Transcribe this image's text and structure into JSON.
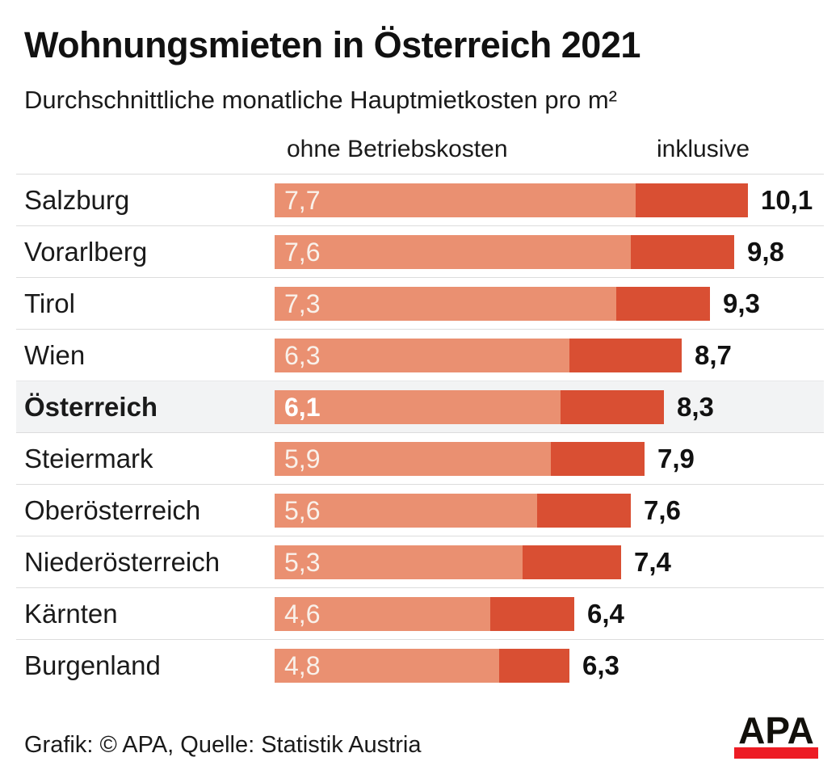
{
  "title": "Wohnungsmieten in Österreich 2021",
  "subtitle": "Durchschnittliche monatliche Hauptmietkosten pro m²",
  "column_headers": {
    "ohne": "ohne Betriebskosten",
    "inklusive": "inklusive"
  },
  "chart_data": {
    "type": "bar",
    "orientation": "horizontal",
    "stacked_overlay": true,
    "categories": [
      "Salzburg",
      "Vorarlberg",
      "Tirol",
      "Wien",
      "Österreich",
      "Steiermark",
      "Oberösterreich",
      "Niederösterreich",
      "Kärnten",
      "Burgenland"
    ],
    "series": [
      {
        "name": "ohne Betriebskosten",
        "values": [
          7.7,
          7.6,
          7.3,
          6.3,
          6.1,
          5.9,
          5.6,
          5.3,
          4.6,
          4.8
        ]
      },
      {
        "name": "inklusive",
        "values": [
          10.1,
          9.8,
          9.3,
          8.7,
          8.3,
          7.9,
          7.6,
          7.4,
          6.4,
          6.3
        ]
      }
    ],
    "value_labels": {
      "ohne": [
        "7,7",
        "7,6",
        "7,3",
        "6,3",
        "6,1",
        "5,9",
        "5,6",
        "5,3",
        "4,6",
        "4,8"
      ],
      "inklusive": [
        "10,1",
        "9,8",
        "9,3",
        "8,7",
        "8,3",
        "7,9",
        "7,6",
        "7,4",
        "6,4",
        "6,3"
      ]
    },
    "highlight_category": "Österreich",
    "xlim": [
      0,
      10.1
    ],
    "grid": false,
    "legend_position": "top"
  },
  "footer": {
    "credit": "Grafik: © APA, Quelle: Statistik Austria",
    "logo_text": "APA"
  },
  "colors": {
    "bar_light": "#EA9071",
    "bar_dark": "#D94F33",
    "highlight_row_bg": "#F2F3F4",
    "divider": "#DCDCDC",
    "in_bar_text": "#F9F1EA",
    "text": "#1A1A1A",
    "logo_red": "#ED1C24"
  }
}
